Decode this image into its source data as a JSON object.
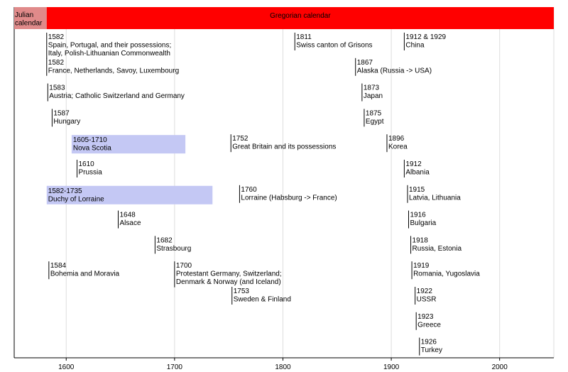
{
  "chart_data": {
    "type": "timeline",
    "xlim": [
      1552,
      2050
    ],
    "x_ticks": [
      1600,
      1700,
      1800,
      1900,
      2000
    ],
    "grid": true,
    "periods": [
      {
        "label": [
          "Julian",
          "calendar"
        ],
        "from": 1552,
        "to": 1582,
        "color": "#e08a8a"
      },
      {
        "label": [
          "Gregorian calendar"
        ],
        "from": 1582,
        "to": 2050,
        "color": "#ff0000"
      }
    ],
    "events": [
      {
        "row": 0,
        "year": 1582,
        "lines": [
          "1582",
          "Spain, Portugal,  and their possessions;",
          "Italy, Polish-Lithuanian Commonwealth"
        ]
      },
      {
        "row": 0,
        "year": 1811,
        "lines": [
          "1811",
          "Swiss canton of Grisons"
        ]
      },
      {
        "row": 0,
        "year": 1912,
        "lines": [
          "1912 & 1929",
          "China"
        ]
      },
      {
        "row": 1,
        "year": 1582,
        "lines": [
          "1582",
          "France, Netherlands, Savoy, Luxembourg"
        ]
      },
      {
        "row": 1,
        "year": 1867,
        "lines": [
          "1867",
          "Alaska (Russia -> USA)"
        ]
      },
      {
        "row": 2,
        "year": 1583,
        "lines": [
          "1583",
          "Austria; Catholic Switzerland and Germany"
        ]
      },
      {
        "row": 2,
        "year": 1873,
        "lines": [
          "1873",
          "Japan"
        ]
      },
      {
        "row": 3,
        "year": 1587,
        "lines": [
          "1587",
          "Hungary"
        ]
      },
      {
        "row": 3,
        "year": 1875,
        "lines": [
          "1875",
          "Egypt"
        ]
      },
      {
        "row": 4,
        "year": 1752,
        "lines": [
          "1752",
          "Great Britain and its possessions"
        ]
      },
      {
        "row": 4,
        "year": 1896,
        "lines": [
          "1896",
          "Korea"
        ]
      },
      {
        "row": 5,
        "year": 1610,
        "lines": [
          "1610",
          "Prussia"
        ]
      },
      {
        "row": 5,
        "year": 1912,
        "lines": [
          "1912",
          "Albania"
        ]
      },
      {
        "row": 6,
        "year": 1760,
        "lines": [
          "1760",
          "Lorraine (Habsburg -> France)"
        ]
      },
      {
        "row": 6,
        "year": 1915,
        "lines": [
          "1915",
          "Latvia, Lithuania"
        ]
      },
      {
        "row": 7,
        "year": 1648,
        "lines": [
          "1648",
          "Alsace"
        ]
      },
      {
        "row": 7,
        "year": 1916,
        "lines": [
          "1916",
          "Bulgaria"
        ]
      },
      {
        "row": 8,
        "year": 1682,
        "lines": [
          "1682",
          "Strasbourg"
        ]
      },
      {
        "row": 8,
        "year": 1918,
        "lines": [
          "1918",
          "Russia, Estonia"
        ]
      },
      {
        "row": 9,
        "year": 1584,
        "lines": [
          "1584",
          "Bohemia and Moravia"
        ]
      },
      {
        "row": 9,
        "year": 1700,
        "lines": [
          "1700",
          "Protestant Germany, Switzerland;",
          "Denmark & Norway (and Iceland)"
        ]
      },
      {
        "row": 9,
        "year": 1919,
        "lines": [
          "1919",
          "Romania, Yugoslavia"
        ]
      },
      {
        "row": 10,
        "year": 1753,
        "lines": [
          "1753",
          "Sweden & Finland"
        ]
      },
      {
        "row": 10,
        "year": 1922,
        "lines": [
          "1922",
          "USSR"
        ]
      },
      {
        "row": 11,
        "year": 1923,
        "lines": [
          "1923",
          "Greece"
        ]
      },
      {
        "row": 12,
        "year": 1926,
        "lines": [
          "1926",
          "Turkey"
        ]
      }
    ],
    "spans": [
      {
        "row": 4,
        "from": 1605,
        "to": 1710,
        "lines": [
          "1605-1710",
          "Nova Scotia"
        ],
        "color": "#c4c8f4"
      },
      {
        "row": 6,
        "from": 1582,
        "to": 1735,
        "lines": [
          "1582-1735",
          "Duchy of Lorraine"
        ],
        "color": "#c4c8f4"
      }
    ]
  }
}
